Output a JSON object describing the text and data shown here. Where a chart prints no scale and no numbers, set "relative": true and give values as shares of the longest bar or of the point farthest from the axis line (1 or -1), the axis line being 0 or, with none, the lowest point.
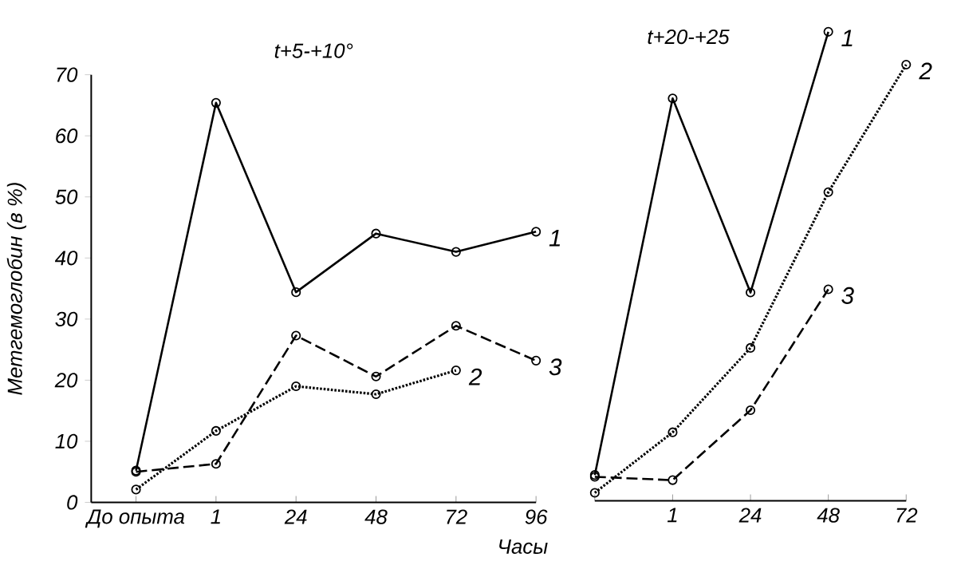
{
  "chart_data": [
    {
      "type": "line",
      "title": "t+5-+10°",
      "xlabel": "Часы",
      "ylabel": "Метгемоглобин (в %)",
      "categories": [
        "До опыта",
        "1",
        "24",
        "48",
        "72",
        "96"
      ],
      "ylim": [
        0,
        70
      ],
      "yticks": [
        0,
        10,
        20,
        30,
        40,
        50,
        60,
        70
      ],
      "marker": "circle",
      "legend": false,
      "grid": false,
      "series": [
        {
          "name": "1",
          "color": "#000000",
          "line_style": "solid",
          "values": [
            5.2,
            65.4,
            34.4,
            44,
            41,
            44.3
          ]
        },
        {
          "name": "2",
          "color": "#000000",
          "line_style": "dotted",
          "values": [
            2.1,
            11.7,
            19,
            17.7,
            21.6,
            null
          ]
        },
        {
          "name": "3",
          "color": "#000000",
          "line_style": "dashed",
          "values": [
            5,
            6.3,
            27.3,
            20.6,
            28.9,
            23.2
          ]
        }
      ]
    },
    {
      "type": "line",
      "title": "t+20-+25",
      "categories": [
        null,
        "1",
        "24",
        "48",
        "72"
      ],
      "relative": true,
      "marker": "circle",
      "legend": false,
      "grid": false,
      "series": [
        {
          "name": "1",
          "color": "#000000",
          "line_style": "solid",
          "values": [
            0.055,
            0.858,
            0.444,
            1,
            null
          ]
        },
        {
          "name": "2",
          "color": "#000000",
          "line_style": "dotted",
          "values": [
            0.017,
            0.146,
            0.326,
            0.658,
            0.93
          ]
        },
        {
          "name": "3",
          "color": "#000000",
          "line_style": "dashed",
          "values": [
            0.051,
            0.044,
            0.193,
            0.451,
            null
          ]
        }
      ]
    }
  ]
}
